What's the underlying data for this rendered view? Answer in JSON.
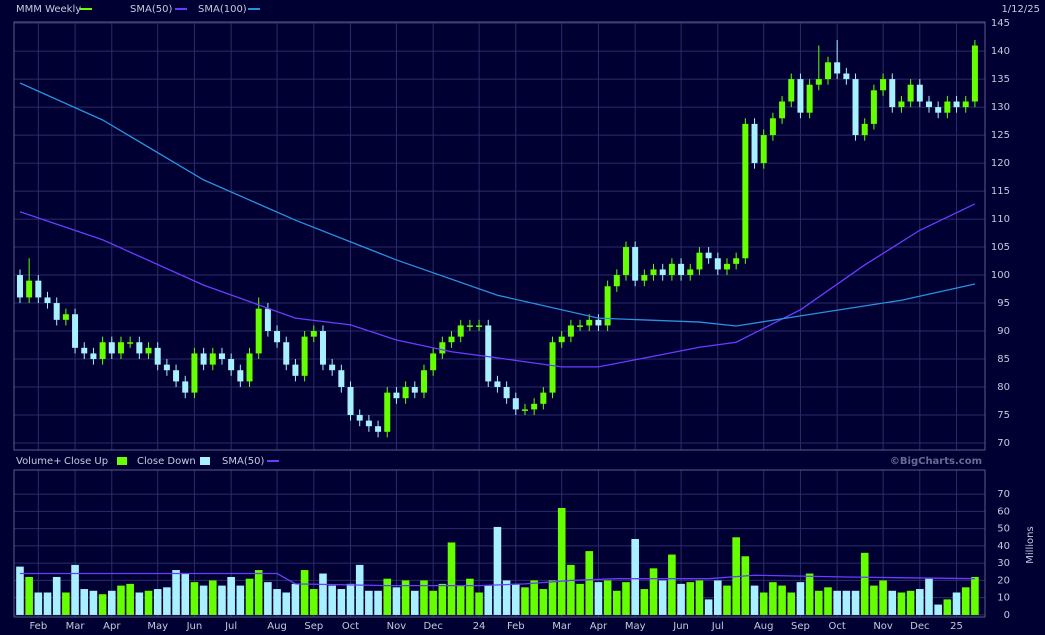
{
  "chart_data": [
    {
      "type": "candlestick",
      "date": "1/12/25",
      "ylim": [
        68.75,
        145.2
      ],
      "yticks": [
        70,
        75,
        80,
        85,
        90,
        95,
        100,
        105,
        110,
        115,
        120,
        125,
        130,
        135,
        140,
        145
      ],
      "xlim": [
        -0.65,
        105.1
      ],
      "grid": true,
      "ohlc": {
        "name": "MMM Weekly",
        "up_color": "#66ff00",
        "down_color": "#a8f0ff",
        "open": [
          100,
          96,
          99,
          96,
          95,
          92,
          93,
          87,
          86,
          85,
          88,
          86,
          88,
          88,
          86,
          87,
          84,
          83,
          81,
          79,
          86,
          84,
          86,
          85,
          83,
          81,
          86,
          94,
          90,
          88,
          84,
          82,
          89,
          90,
          84,
          83,
          80,
          75,
          74,
          73,
          72,
          79,
          78,
          80,
          79,
          83,
          86,
          88,
          89,
          91,
          91,
          91,
          81,
          80,
          78,
          76,
          76,
          77,
          79,
          88,
          89,
          91,
          91,
          92,
          91,
          98,
          100,
          105,
          99,
          100,
          101,
          100,
          102,
          100,
          101,
          104,
          103,
          101,
          102,
          103,
          127,
          120,
          125,
          128,
          131,
          135,
          129,
          134,
          135,
          138,
          136,
          135,
          125,
          127,
          133,
          135,
          130,
          131,
          134,
          131,
          130,
          129,
          131,
          130,
          131
        ],
        "high": [
          101,
          103,
          100,
          97,
          96,
          94,
          94,
          88,
          87,
          89,
          89,
          89,
          89,
          89,
          88,
          88,
          85,
          84,
          82,
          87,
          87,
          87,
          87,
          86,
          84,
          87,
          96,
          95,
          91,
          89,
          85,
          90,
          91,
          91,
          85,
          84,
          81,
          76,
          75,
          74,
          80,
          80,
          81,
          81,
          84,
          87,
          89,
          90,
          92,
          92,
          92,
          92,
          82,
          81,
          79,
          77,
          78,
          80,
          89,
          90,
          92,
          92,
          93,
          93,
          99,
          101,
          106,
          106,
          101,
          102,
          102,
          103,
          103,
          102,
          105,
          105,
          104,
          103,
          104,
          128,
          128,
          126,
          129,
          132,
          136,
          136,
          135,
          141,
          139,
          142,
          137,
          136,
          128,
          134,
          136,
          136,
          132,
          135,
          135,
          132,
          131,
          132,
          132,
          132,
          142
        ],
        "low": [
          95,
          95,
          95,
          94,
          91,
          91,
          86,
          85,
          84,
          84,
          85,
          85,
          87,
          85,
          85,
          83,
          82,
          80,
          78,
          78,
          83,
          83,
          84,
          82,
          80,
          80,
          85,
          89,
          87,
          83,
          81,
          81,
          88,
          83,
          82,
          79,
          74,
          73,
          72,
          71,
          71,
          77,
          77,
          78,
          78,
          82,
          85,
          87,
          88,
          90,
          90,
          80,
          79,
          77,
          75,
          75,
          75,
          76,
          78,
          87,
          88,
          90,
          90,
          90,
          90,
          97,
          99,
          98,
          98,
          99,
          99,
          99,
          99,
          99,
          100,
          102,
          100,
          100,
          101,
          102,
          119,
          119,
          124,
          127,
          130,
          128,
          128,
          133,
          134,
          135,
          134,
          124,
          124,
          126,
          132,
          129,
          129,
          130,
          130,
          129,
          128,
          128,
          129,
          129,
          130
        ],
        "close": [
          96,
          99,
          96,
          95,
          92,
          93,
          87,
          86,
          85,
          88,
          86,
          88,
          88,
          86,
          87,
          84,
          83,
          81,
          79,
          86,
          84,
          86,
          85,
          83,
          81,
          86,
          94,
          90,
          88,
          84,
          82,
          89,
          90,
          84,
          83,
          80,
          75,
          74,
          73,
          72,
          79,
          78,
          80,
          79,
          83,
          86,
          88,
          89,
          91,
          91,
          91,
          81,
          80,
          78,
          76,
          76,
          77,
          79,
          88,
          89,
          91,
          91,
          92,
          91,
          98,
          100,
          105,
          99,
          100,
          101,
          100,
          102,
          100,
          101,
          104,
          103,
          101,
          102,
          103,
          127,
          120,
          125,
          128,
          131,
          135,
          129,
          134,
          135,
          138,
          136,
          135,
          125,
          127,
          133,
          135,
          130,
          131,
          134,
          131,
          130,
          129,
          131,
          130,
          131,
          141
        ]
      },
      "series": [
        {
          "name": "SMA(50)",
          "color": "#6a3cff",
          "x": [
            0,
            9,
            20,
            30,
            36,
            41,
            47,
            52,
            59,
            63,
            69,
            74,
            78,
            85,
            92,
            98,
            104
          ],
          "values": [
            111.3,
            106.3,
            98.2,
            92.3,
            91.1,
            88.4,
            86.3,
            85.2,
            83.6,
            83.6,
            85.5,
            87.1,
            88,
            93.8,
            101.8,
            108,
            112.7
          ]
        },
        {
          "name": "SMA(100)",
          "color": "#2a90e0",
          "x": [
            0,
            9,
            20,
            30,
            41,
            52,
            63,
            74,
            78,
            85,
            96,
            104
          ],
          "values": [
            134.3,
            127.7,
            117,
            109.8,
            102.7,
            96.4,
            92.3,
            91.6,
            90.9,
            92.7,
            95.5,
            98.4
          ]
        }
      ]
    },
    {
      "type": "bar",
      "title": "Volume+",
      "credit": "©BigCharts.com",
      "y_label": "Millions",
      "ylim": [
        -1.2,
        84
      ],
      "yticks": [
        0,
        10,
        20,
        30,
        40,
        50,
        60,
        70
      ],
      "xlim": [
        -0.65,
        105.1
      ],
      "grid": true,
      "xticks": [
        {
          "value": 2,
          "label": "Feb"
        },
        {
          "value": 6,
          "label": "Mar"
        },
        {
          "value": 10,
          "label": "Apr"
        },
        {
          "value": 15,
          "label": "May"
        },
        {
          "value": 19,
          "label": "Jun"
        },
        {
          "value": 23,
          "label": "Jul"
        },
        {
          "value": 28,
          "label": "Aug"
        },
        {
          "value": 32,
          "label": "Sep"
        },
        {
          "value": 36,
          "label": "Oct"
        },
        {
          "value": 41,
          "label": "Nov"
        },
        {
          "value": 45,
          "label": "Dec"
        },
        {
          "value": 50,
          "label": "24"
        },
        {
          "value": 54,
          "label": "Feb"
        },
        {
          "value": 59,
          "label": "Mar"
        },
        {
          "value": 63,
          "label": "Apr"
        },
        {
          "value": 67,
          "label": "May"
        },
        {
          "value": 72,
          "label": "Jun"
        },
        {
          "value": 76,
          "label": "Jul"
        },
        {
          "value": 81,
          "label": "Aug"
        },
        {
          "value": 85,
          "label": "Sep"
        },
        {
          "value": 89,
          "label": "Oct"
        },
        {
          "value": 94,
          "label": "Nov"
        },
        {
          "value": 98,
          "label": "Dec"
        },
        {
          "value": 102,
          "label": "25"
        }
      ],
      "legend": [
        {
          "name": "Close Up",
          "color": "#66ff00"
        },
        {
          "name": "Close Down",
          "color": "#a8f0ff"
        }
      ],
      "values": [
        28,
        22,
        13,
        13,
        22,
        13,
        29,
        15,
        14,
        12,
        14,
        17,
        18,
        13,
        14,
        15,
        16,
        26,
        24,
        19,
        17,
        20,
        17,
        22,
        17,
        21,
        26,
        19,
        15,
        13,
        18,
        26,
        15,
        24,
        17,
        15,
        18,
        29,
        14,
        14,
        21,
        16,
        20,
        14,
        20,
        14,
        18,
        42,
        17,
        21,
        13,
        17,
        51,
        20,
        18,
        16,
        20,
        15,
        20,
        62,
        29,
        18,
        37,
        19,
        20,
        14,
        19,
        44,
        15,
        27,
        20,
        35,
        18,
        19,
        20,
        9,
        20,
        17,
        45,
        34,
        17,
        13,
        19,
        17,
        13,
        19,
        24,
        14,
        16,
        14,
        14,
        14,
        36,
        17,
        20,
        14,
        13,
        14,
        15,
        21,
        6,
        9,
        13,
        16,
        22
      ],
      "series": [
        {
          "name": "SMA(50)",
          "color": "#6a3cff",
          "x": [
            0,
            20,
            28,
            30,
            40,
            50,
            55,
            60,
            65,
            75,
            80,
            90,
            104
          ],
          "values": [
            24,
            24,
            24,
            18,
            17,
            17,
            18,
            20,
            21,
            21,
            23,
            22,
            21
          ]
        }
      ]
    }
  ]
}
